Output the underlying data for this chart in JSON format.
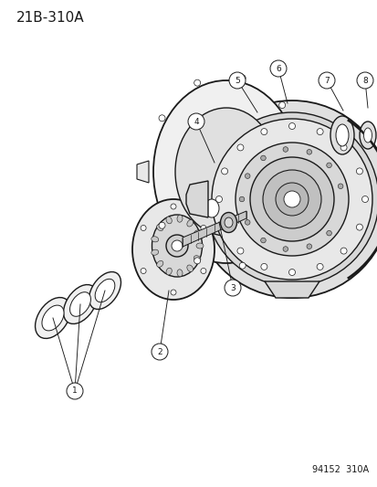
{
  "title_label": "21B-310A",
  "footer_label": "94152  310A",
  "bg_color": "#ffffff",
  "line_color": "#1a1a1a",
  "title_fontsize": 11,
  "footer_fontsize": 7
}
